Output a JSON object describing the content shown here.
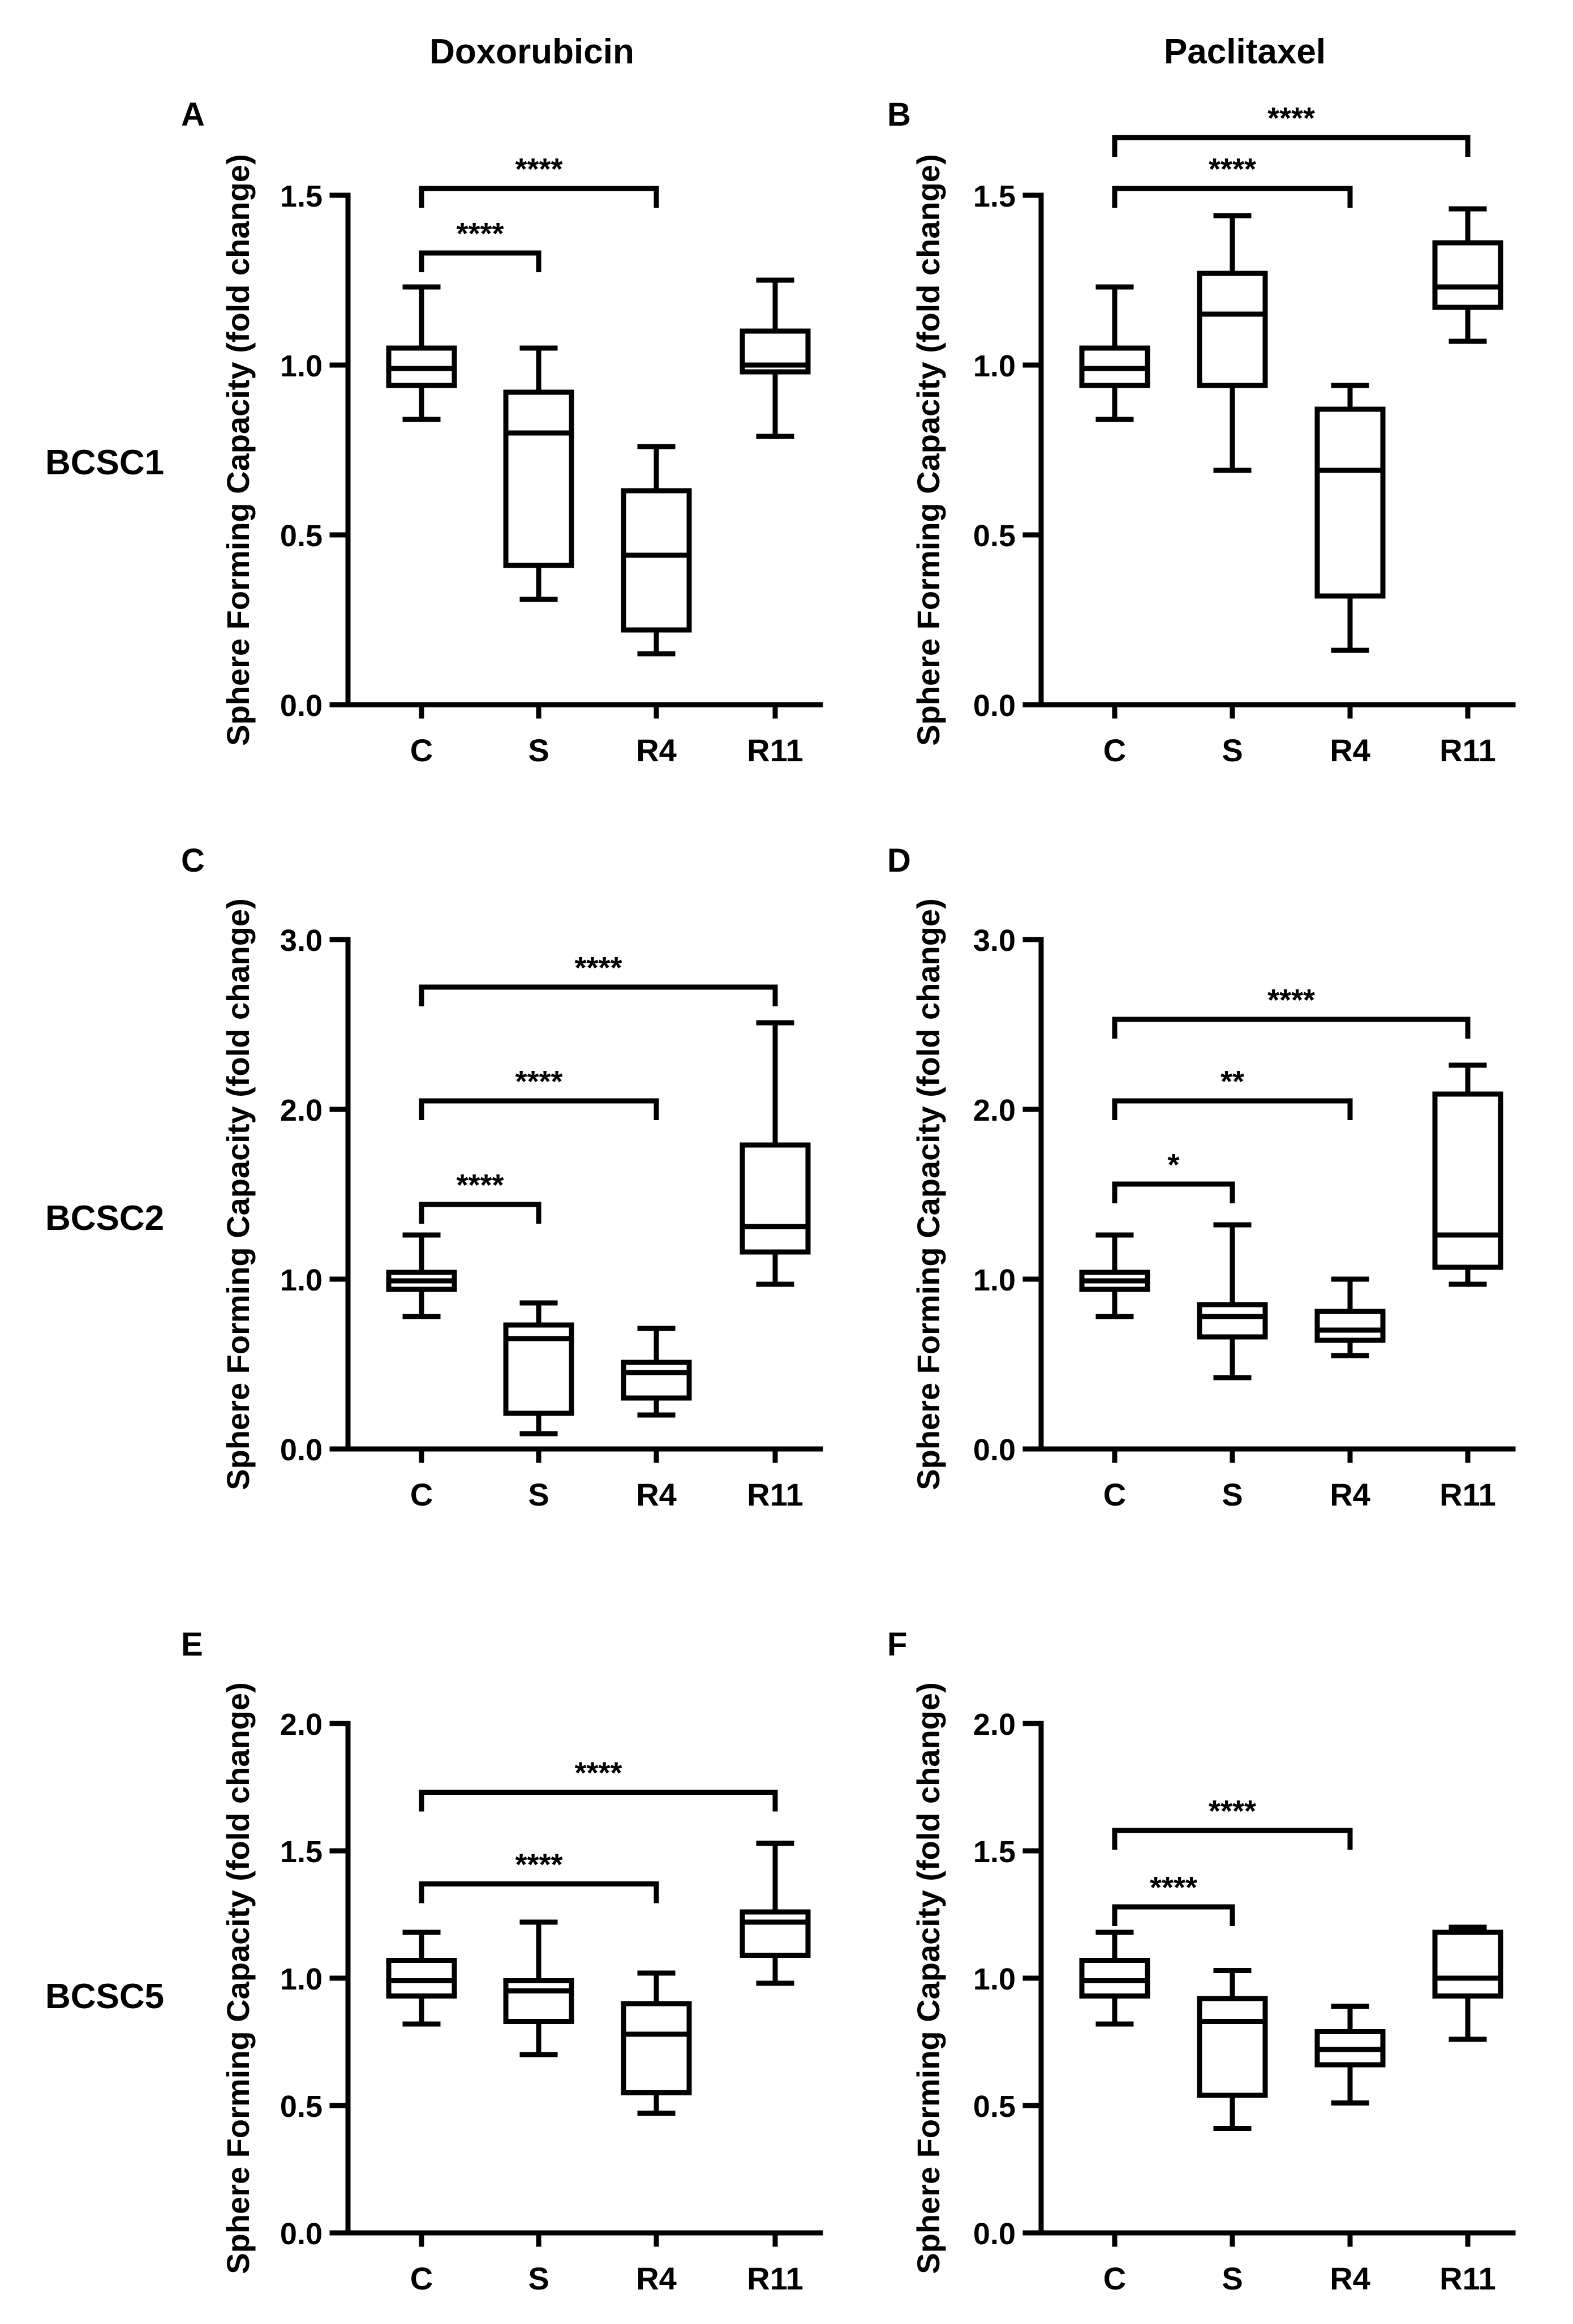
{
  "columns": [
    "Doxorubicin",
    "Paclitaxel"
  ],
  "rows": [
    "BCSC1",
    "BCSC2",
    "BCSC5"
  ],
  "ylabel": "Sphere Forming Capacity (fold change)",
  "chart_data": [
    {
      "panel": "A",
      "type": "box",
      "cell_line": "BCSC1",
      "drug": "Doxorubicin",
      "categories": [
        "C",
        "S",
        "R4",
        "R11"
      ],
      "ylabel": "Sphere Forming Capacity (fold change)",
      "ylim": [
        0,
        1.5
      ],
      "yticks": [
        0.0,
        0.5,
        1.0,
        1.5
      ],
      "yticklabels": [
        "0.0",
        "0.5",
        "1.0",
        "1.5"
      ],
      "boxes": [
        {
          "min": 0.84,
          "q1": 0.94,
          "median": 0.99,
          "q3": 1.05,
          "max": 1.23
        },
        {
          "min": 0.31,
          "q1": 0.41,
          "median": 0.8,
          "q3": 0.92,
          "max": 1.05
        },
        {
          "min": 0.15,
          "q1": 0.22,
          "median": 0.44,
          "q3": 0.63,
          "max": 0.76
        },
        {
          "min": 0.79,
          "q1": 0.98,
          "median": 1.0,
          "q3": 1.1,
          "max": 1.25
        }
      ],
      "significance": [
        {
          "from": "C",
          "to": "S",
          "level": 1.33,
          "label": "****"
        },
        {
          "from": "C",
          "to": "R4",
          "level": 1.52,
          "label": "****"
        }
      ]
    },
    {
      "panel": "B",
      "type": "box",
      "cell_line": "BCSC1",
      "drug": "Paclitaxel",
      "categories": [
        "C",
        "S",
        "R4",
        "R11"
      ],
      "ylabel": "Sphere Forming Capacity (fold change)",
      "ylim": [
        0,
        1.5
      ],
      "yticks": [
        0.0,
        0.5,
        1.0,
        1.5
      ],
      "yticklabels": [
        "0.0",
        "0.5",
        "1.0",
        "1.5"
      ],
      "boxes": [
        {
          "min": 0.84,
          "q1": 0.94,
          "median": 0.99,
          "q3": 1.05,
          "max": 1.23
        },
        {
          "min": 0.69,
          "q1": 0.94,
          "median": 1.15,
          "q3": 1.27,
          "max": 1.44
        },
        {
          "min": 0.16,
          "q1": 0.32,
          "median": 0.69,
          "q3": 0.87,
          "max": 0.94
        },
        {
          "min": 1.07,
          "q1": 1.17,
          "median": 1.23,
          "q3": 1.36,
          "max": 1.46
        }
      ],
      "significance": [
        {
          "from": "C",
          "to": "R4",
          "level": 1.52,
          "label": "****"
        },
        {
          "from": "C",
          "to": "R11",
          "level": 1.67,
          "label": "****"
        }
      ]
    },
    {
      "panel": "C",
      "type": "box",
      "cell_line": "BCSC2",
      "drug": "Doxorubicin",
      "categories": [
        "C",
        "S",
        "R4",
        "R11"
      ],
      "ylabel": "Sphere Forming Capacity (fold change)",
      "ylim": [
        0,
        3.0
      ],
      "yticks": [
        0.0,
        1.0,
        2.0,
        3.0
      ],
      "yticklabels": [
        "0.0",
        "1.0",
        "2.0",
        "3.0"
      ],
      "boxes": [
        {
          "min": 0.78,
          "q1": 0.94,
          "median": 0.99,
          "q3": 1.04,
          "max": 1.26
        },
        {
          "min": 0.09,
          "q1": 0.21,
          "median": 0.65,
          "q3": 0.73,
          "max": 0.86
        },
        {
          "min": 0.2,
          "q1": 0.3,
          "median": 0.45,
          "q3": 0.51,
          "max": 0.71
        },
        {
          "min": 0.97,
          "q1": 1.16,
          "median": 1.31,
          "q3": 1.79,
          "max": 2.51
        }
      ],
      "significance": [
        {
          "from": "C",
          "to": "S",
          "level": 1.44,
          "label": "****"
        },
        {
          "from": "C",
          "to": "R4",
          "level": 2.05,
          "label": "****"
        },
        {
          "from": "C",
          "to": "R11",
          "level": 2.72,
          "label": "****"
        }
      ]
    },
    {
      "panel": "D",
      "type": "box",
      "cell_line": "BCSC2",
      "drug": "Paclitaxel",
      "categories": [
        "C",
        "S",
        "R4",
        "R11"
      ],
      "ylabel": "Sphere Forming Capacity (fold change)",
      "ylim": [
        0,
        3.0
      ],
      "yticks": [
        0.0,
        1.0,
        2.0,
        3.0
      ],
      "yticklabels": [
        "0.0",
        "1.0",
        "2.0",
        "3.0"
      ],
      "boxes": [
        {
          "min": 0.78,
          "q1": 0.94,
          "median": 0.99,
          "q3": 1.04,
          "max": 1.26
        },
        {
          "min": 0.42,
          "q1": 0.66,
          "median": 0.78,
          "q3": 0.85,
          "max": 1.32
        },
        {
          "min": 0.55,
          "q1": 0.64,
          "median": 0.7,
          "q3": 0.81,
          "max": 1.0
        },
        {
          "min": 0.97,
          "q1": 1.07,
          "median": 1.26,
          "q3": 2.09,
          "max": 2.26
        }
      ],
      "significance": [
        {
          "from": "C",
          "to": "S",
          "level": 1.56,
          "label": "*"
        },
        {
          "from": "C",
          "to": "R4",
          "level": 2.05,
          "label": "**"
        },
        {
          "from": "C",
          "to": "R11",
          "level": 2.53,
          "label": "****"
        }
      ]
    },
    {
      "panel": "E",
      "type": "box",
      "cell_line": "BCSC5",
      "drug": "Doxorubicin",
      "categories": [
        "C",
        "S",
        "R4",
        "R11"
      ],
      "ylabel": "Sphere Forming Capacity (fold change)",
      "ylim": [
        0,
        2.0
      ],
      "yticks": [
        0.0,
        0.5,
        1.0,
        1.5,
        2.0
      ],
      "yticklabels": [
        "0.0",
        "0.5",
        "1.0",
        "1.5",
        "2.0"
      ],
      "boxes": [
        {
          "min": 0.82,
          "q1": 0.93,
          "median": 0.99,
          "q3": 1.07,
          "max": 1.18
        },
        {
          "min": 0.7,
          "q1": 0.83,
          "median": 0.95,
          "q3": 0.99,
          "max": 1.22
        },
        {
          "min": 0.47,
          "q1": 0.55,
          "median": 0.78,
          "q3": 0.9,
          "max": 1.02
        },
        {
          "min": 0.98,
          "q1": 1.09,
          "median": 1.22,
          "q3": 1.26,
          "max": 1.53
        }
      ],
      "significance": [
        {
          "from": "C",
          "to": "R4",
          "level": 1.37,
          "label": "****"
        },
        {
          "from": "C",
          "to": "R11",
          "level": 1.73,
          "label": "****"
        }
      ]
    },
    {
      "panel": "F",
      "type": "box",
      "cell_line": "BCSC5",
      "drug": "Paclitaxel",
      "categories": [
        "C",
        "S",
        "R4",
        "R11"
      ],
      "ylabel": "Sphere Forming Capacity (fold change)",
      "ylim": [
        0,
        2.0
      ],
      "yticks": [
        0.0,
        0.5,
        1.0,
        1.5,
        2.0
      ],
      "yticklabels": [
        "0.0",
        "0.5",
        "1.0",
        "1.5",
        "2.0"
      ],
      "boxes": [
        {
          "min": 0.82,
          "q1": 0.93,
          "median": 0.99,
          "q3": 1.07,
          "max": 1.18
        },
        {
          "min": 0.41,
          "q1": 0.54,
          "median": 0.83,
          "q3": 0.92,
          "max": 1.03
        },
        {
          "min": 0.51,
          "q1": 0.66,
          "median": 0.72,
          "q3": 0.79,
          "max": 0.89
        },
        {
          "min": 0.76,
          "q1": 0.93,
          "median": 1.0,
          "q3": 1.18,
          "max": 1.2
        }
      ],
      "significance": [
        {
          "from": "C",
          "to": "S",
          "level": 1.28,
          "label": "****"
        },
        {
          "from": "C",
          "to": "R4",
          "level": 1.58,
          "label": "****"
        }
      ]
    }
  ]
}
